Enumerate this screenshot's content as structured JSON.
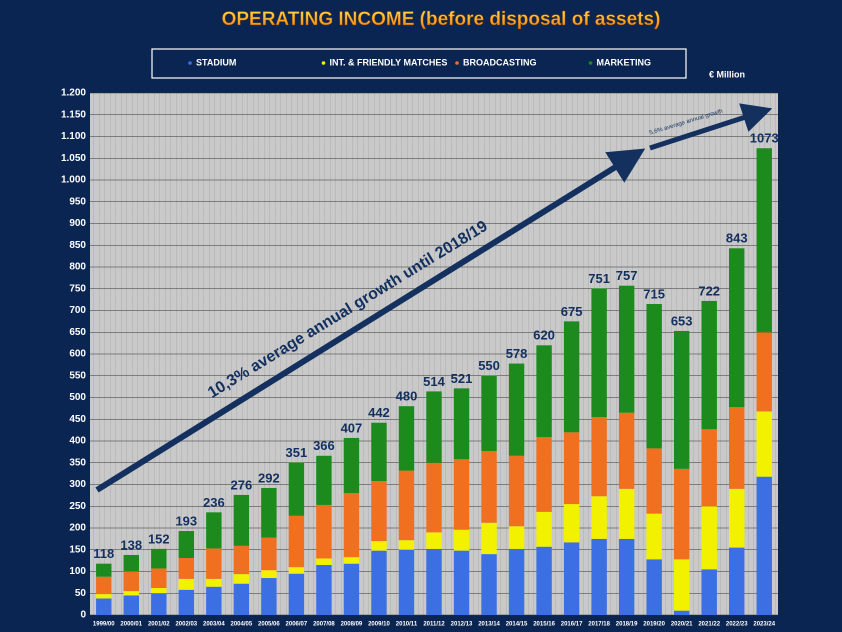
{
  "chart_data": {
    "type": "stacked_bar",
    "title": "OPERATING INCOME (before disposal of assets)",
    "unit_label": "€ Million",
    "annotations": [
      "10,3% average annual growth until 2018/19",
      "5,6% average annual growth"
    ],
    "categories": [
      "1999/00",
      "2000/01",
      "2001/02",
      "2002/03",
      "2003/04",
      "2004/05",
      "2005/06",
      "2006/07",
      "2007/08",
      "2008/09",
      "2009/10",
      "2010/11",
      "2011/12",
      "2012/13",
      "2013/14",
      "2014/15",
      "2015/16",
      "2016/17",
      "2017/18",
      "2018/19",
      "2019/20",
      "2020/21",
      "2021/22",
      "2022/23",
      "2023/24"
    ],
    "series": [
      {
        "name": "STADIUM",
        "color": "#3b6fe3",
        "values": [
          38,
          45,
          50,
          58,
          65,
          72,
          85,
          95,
          115,
          118,
          148,
          150,
          152,
          148,
          140,
          152,
          157,
          167,
          175,
          175,
          128,
          10,
          105,
          155,
          318
        ]
      },
      {
        "name": "INT. & FRIENDLY MATCHES",
        "color": "#f2f200",
        "values": [
          10,
          10,
          12,
          25,
          18,
          22,
          18,
          15,
          15,
          15,
          22,
          22,
          38,
          48,
          72,
          52,
          80,
          88,
          98,
          115,
          105,
          118,
          145,
          135,
          150
        ]
      },
      {
        "name": "BROADCASTING",
        "color": "#f07020",
        "values": [
          40,
          45,
          45,
          48,
          70,
          65,
          75,
          118,
          123,
          147,
          138,
          160,
          160,
          162,
          165,
          162,
          172,
          165,
          182,
          175,
          150,
          208,
          177,
          188,
          182
        ]
      },
      {
        "name": "MARKETING",
        "color": "#1c8a1c",
        "values": [
          30,
          38,
          45,
          62,
          83,
          117,
          114,
          123,
          113,
          127,
          134,
          148,
          164,
          163,
          173,
          212,
          211,
          255,
          296,
          292,
          332,
          317,
          295,
          365,
          423
        ]
      }
    ],
    "totals": [
      118,
      138,
      152,
      193,
      236,
      276,
      292,
      351,
      366,
      407,
      442,
      480,
      514,
      521,
      550,
      578,
      620,
      675,
      751,
      757,
      715,
      653,
      722,
      843,
      1073
    ],
    "ylim": [
      0,
      1200
    ],
    "yticks": [
      0,
      50,
      100,
      150,
      200,
      250,
      300,
      350,
      400,
      450,
      500,
      550,
      600,
      650,
      700,
      750,
      800,
      850,
      900,
      950,
      {
        "value": 1000,
        "label": "1.000"
      },
      {
        "value": 1050,
        "label": "1.050"
      },
      {
        "value": 1100,
        "label": "1.100"
      },
      {
        "value": 1150,
        "label": "1.150"
      },
      {
        "value": 1200,
        "label": "1.200"
      }
    ],
    "grid": true
  }
}
